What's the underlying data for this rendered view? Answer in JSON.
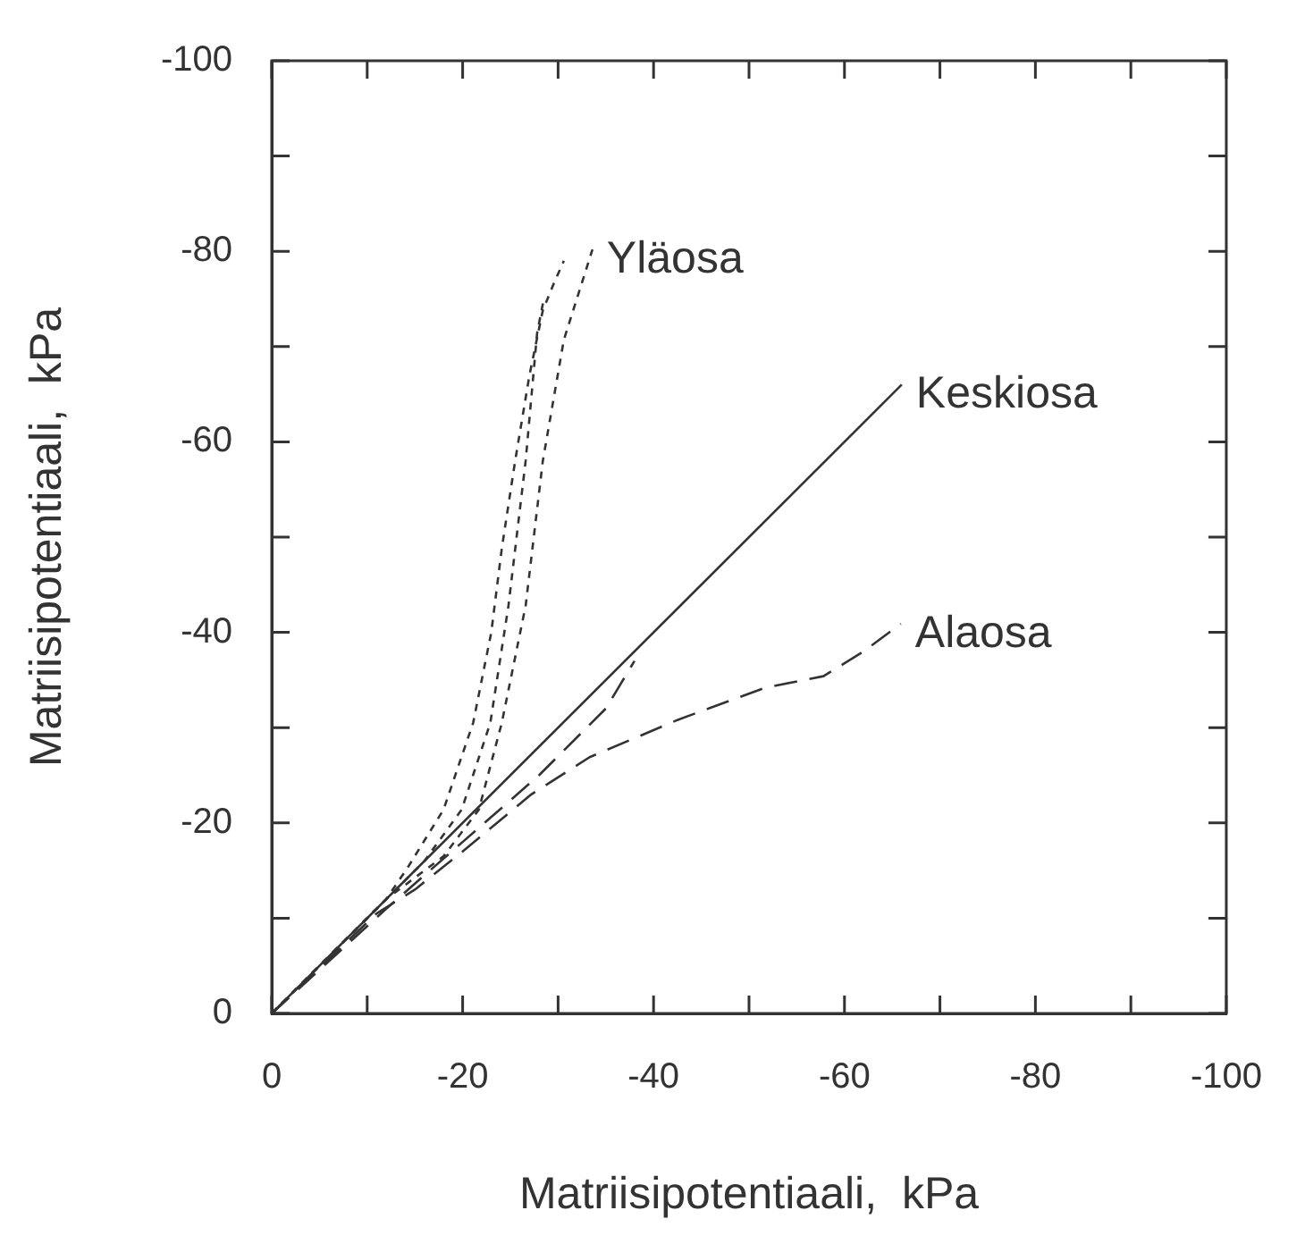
{
  "chart_data": {
    "type": "line",
    "xlabel": "Matriisipotentiaali,  kPa",
    "ylabel": "Matriisipotentiaali,  kPa",
    "xlim": [
      0,
      -100
    ],
    "ylim": [
      0,
      -100
    ],
    "xticks": [
      0,
      {
        "value": -10,
        "label": null
      },
      -20,
      {
        "value": -30,
        "label": null
      },
      -40,
      {
        "value": -50,
        "label": null
      },
      -60,
      {
        "value": -70,
        "label": null
      },
      -80,
      {
        "value": -90,
        "label": null
      },
      -100
    ],
    "yticks": [
      0,
      {
        "value": -10,
        "label": null
      },
      -20,
      {
        "value": -30,
        "label": null
      },
      -40,
      {
        "value": -50,
        "label": null
      },
      -60,
      {
        "value": -70,
        "label": null
      },
      -80,
      {
        "value": -90,
        "label": null
      },
      -100
    ],
    "grid": false,
    "legend": false,
    "marker": "none",
    "series": [
      {
        "color": "#333333",
        "line_style": "dotted",
        "x": [
          0,
          -12,
          -14.3,
          -18,
          -21.1,
          -23,
          -24.1,
          -25.5,
          -27,
          -28.4,
          -29.5,
          -30.6
        ],
        "values": [
          0,
          -12,
          -15.4,
          -21.4,
          -30.5,
          -40,
          -48.8,
          -58,
          -67,
          -73.8,
          -76.5,
          -79
        ]
      },
      {
        "color": "#333333",
        "line_style": "dotted",
        "x": [
          0,
          -12,
          -16,
          -19.9,
          -22.9,
          -24.8,
          -26.6,
          -27.8,
          -28.5
        ],
        "values": [
          0,
          -12,
          -16,
          -21.4,
          -30.5,
          -42.8,
          -58,
          -71.4,
          -75
        ]
      },
      {
        "name": "Yläosa",
        "color": "#333333",
        "line_style": "dotted",
        "x": [
          0,
          -12,
          -18,
          -21.7,
          -24.1,
          -26.6,
          -28.4,
          -30.6,
          -33.6
        ],
        "values": [
          0,
          -12,
          -16.5,
          -21.4,
          -30.5,
          -42.8,
          -58,
          -70.7,
          -80.2
        ]
      },
      {
        "name": "Keskiosa",
        "color": "#333333",
        "line_style": "solid",
        "x": [
          0,
          -66
        ],
        "values": [
          0,
          -66
        ]
      },
      {
        "color": "#333333",
        "line_style": "dashed",
        "x": [
          0,
          -12,
          -20,
          -28,
          -35,
          -38
        ],
        "values": [
          0,
          -11,
          -18,
          -25,
          -32,
          -37
        ]
      },
      {
        "name": "Alaosa",
        "color": "#333333",
        "line_style": "dashed",
        "x": [
          0,
          -11,
          -15,
          -20,
          -27.2,
          -33.3,
          -42.5,
          -51.7,
          -57.8,
          -62,
          -65.9
        ],
        "values": [
          0,
          -10.5,
          -13,
          -17,
          -23,
          -26.9,
          -30.8,
          -34.2,
          -35.4,
          -38,
          -40.9
        ]
      }
    ]
  }
}
